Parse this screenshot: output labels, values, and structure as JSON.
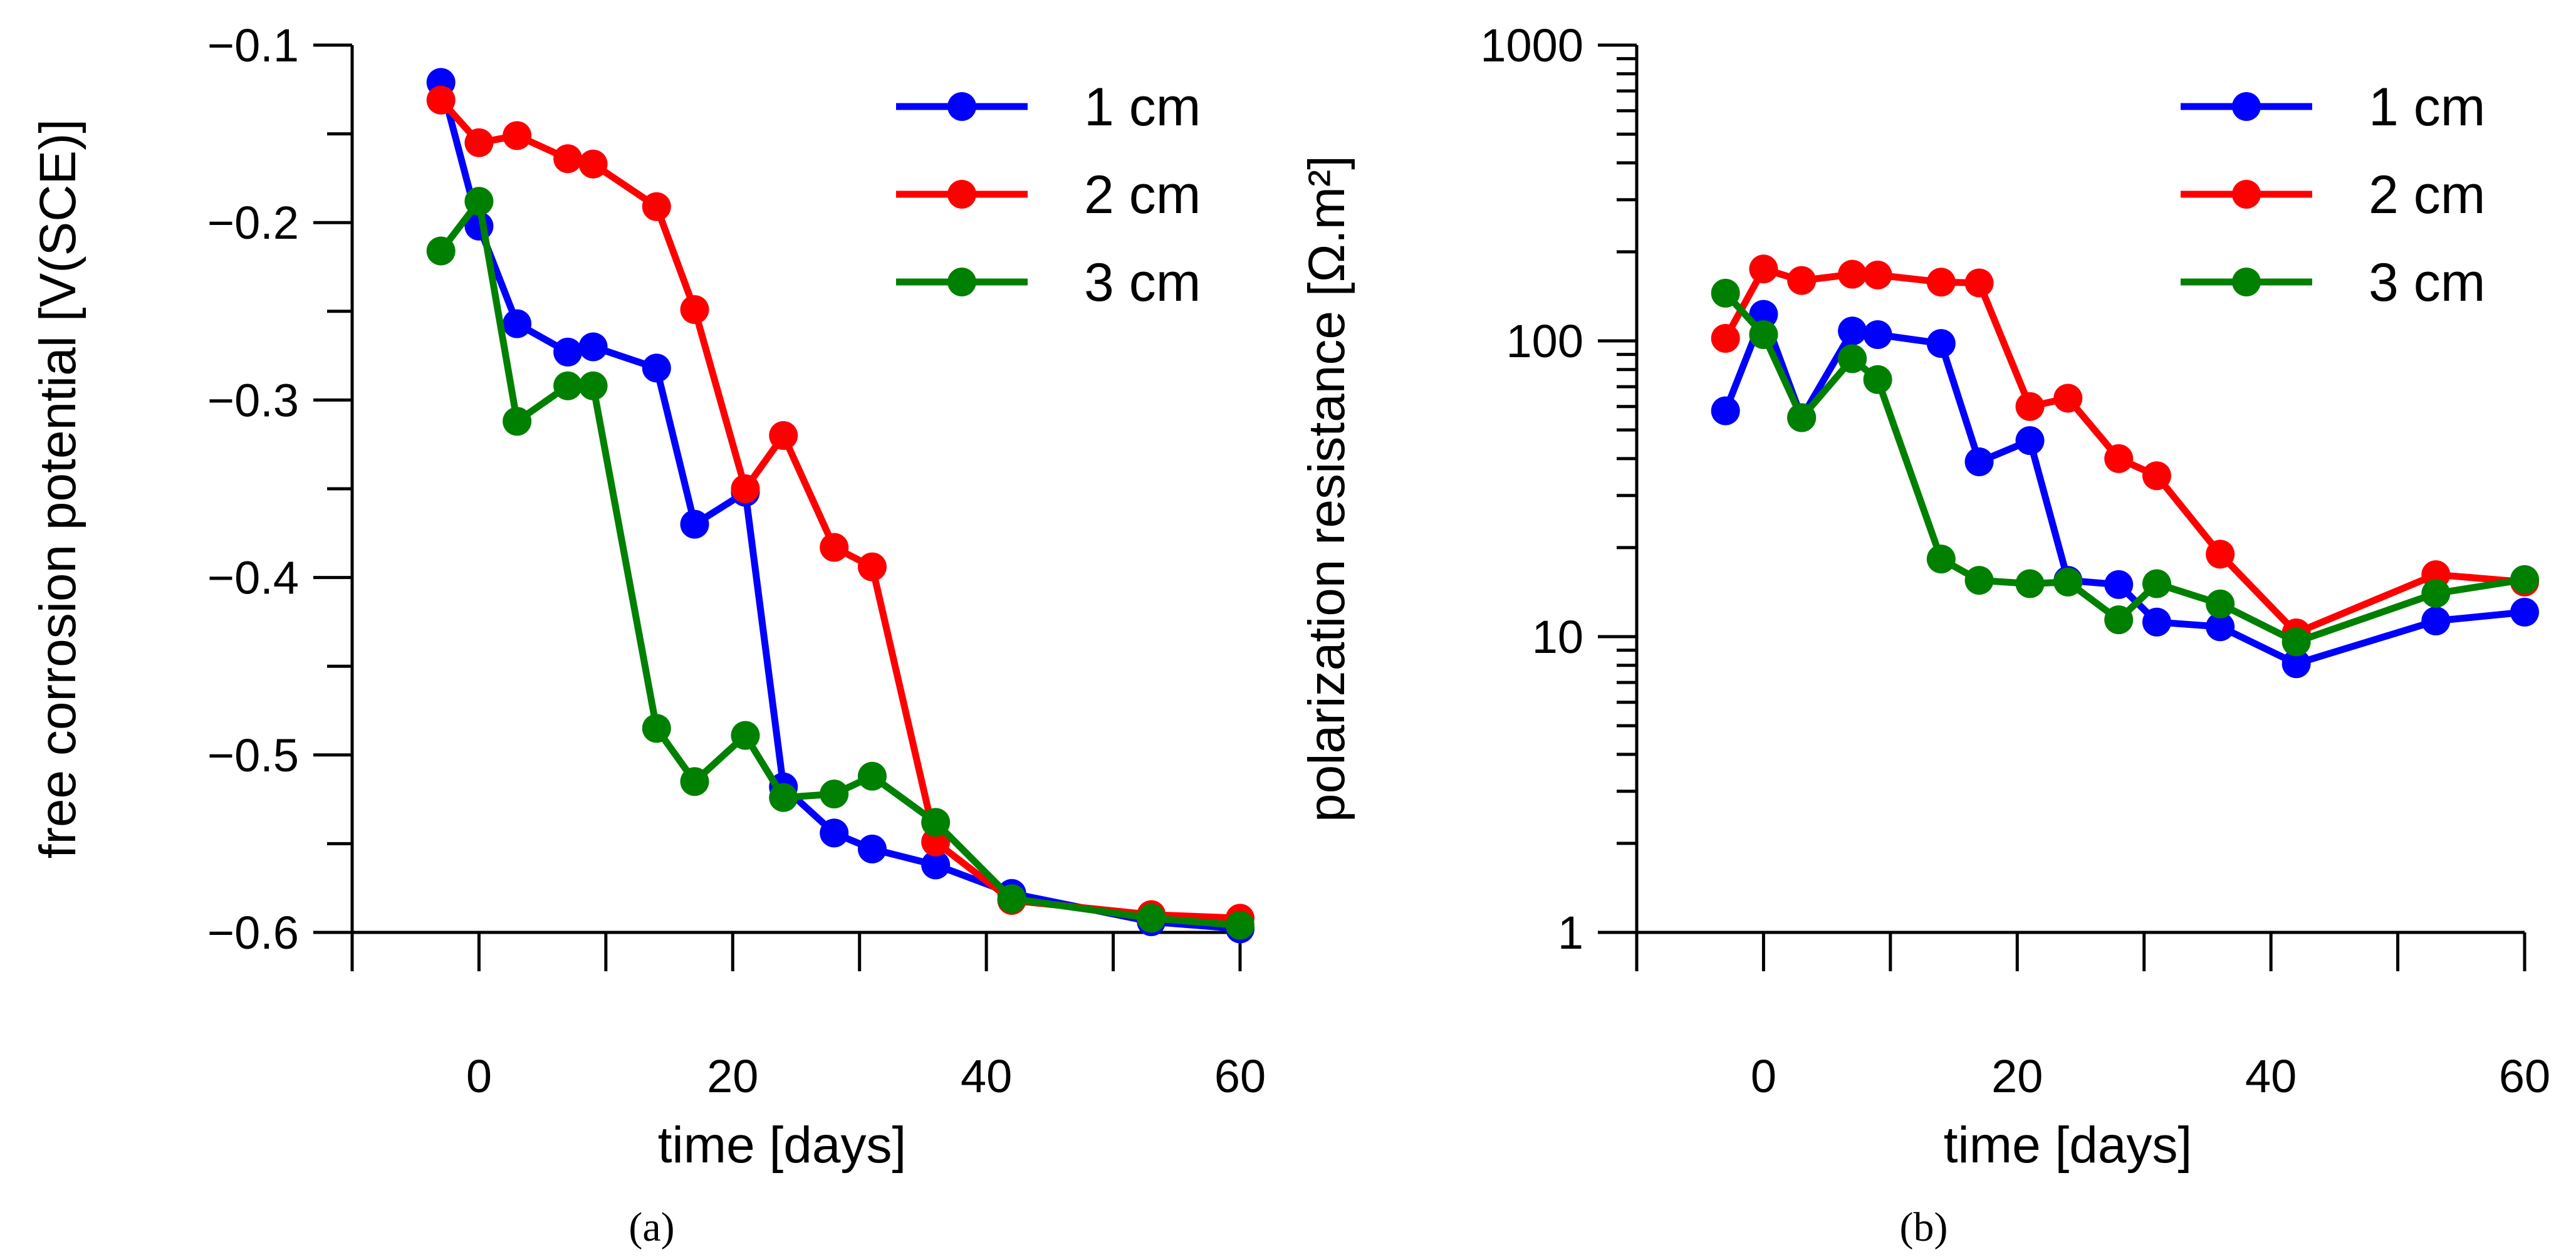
{
  "chart_data": [
    {
      "type": "line",
      "panel_label": "(a)",
      "xlabel": "time [days]",
      "ylabel": "free corrosion potential [V(SCE)]",
      "xlim": [
        -10,
        60
      ],
      "ylim": [
        -0.6,
        -0.1
      ],
      "xticks": [
        0,
        20,
        40,
        60
      ],
      "xtick_labels": [
        "0",
        "20",
        "40",
        "60"
      ],
      "yticks": [
        -0.6,
        -0.5,
        -0.4,
        -0.3,
        -0.2,
        -0.1
      ],
      "ytick_labels": [
        "−0.6",
        "−0.5",
        "−0.4",
        "−0.3",
        "−0.2",
        "−0.1"
      ],
      "legend_position": "top-right",
      "series": [
        {
          "name": "1 cm",
          "color": "#0000ff",
          "x": [
            -3,
            0,
            3,
            7,
            9,
            14,
            17,
            21,
            24,
            28,
            31,
            36,
            42,
            53,
            60
          ],
          "values": [
            -0.121,
            -0.202,
            -0.257,
            -0.273,
            -0.27,
            -0.282,
            -0.37,
            -0.352,
            -0.518,
            -0.544,
            -0.553,
            -0.562,
            -0.578,
            -0.594,
            -0.598
          ]
        },
        {
          "name": "2 cm",
          "color": "#ff0000",
          "x": [
            -3,
            0,
            3,
            7,
            9,
            14,
            17,
            21,
            24,
            28,
            31,
            36,
            42,
            53,
            60
          ],
          "values": [
            -0.131,
            -0.155,
            -0.151,
            -0.164,
            -0.167,
            -0.191,
            -0.249,
            -0.35,
            -0.32,
            -0.383,
            -0.394,
            -0.549,
            -0.582,
            -0.59,
            -0.592
          ]
        },
        {
          "name": "3 cm",
          "color": "#008000",
          "x": [
            -3,
            0,
            3,
            7,
            9,
            14,
            17,
            21,
            24,
            28,
            31,
            36,
            42,
            53,
            60
          ],
          "values": [
            -0.216,
            -0.188,
            -0.312,
            -0.292,
            -0.292,
            -0.485,
            -0.515,
            -0.489,
            -0.524,
            -0.522,
            -0.512,
            -0.538,
            -0.581,
            -0.592,
            -0.596
          ]
        }
      ]
    },
    {
      "type": "line",
      "panel_label": "(b)",
      "xlabel": "time [days]",
      "ylabel": "polarization resistance [Ω.m²]",
      "yscale": "log",
      "xlim": [
        -10,
        60
      ],
      "ylim": [
        1,
        1000
      ],
      "xticks": [
        0,
        20,
        40,
        60
      ],
      "xtick_labels": [
        "0",
        "20",
        "40",
        "60"
      ],
      "yticks": [
        1,
        10,
        100,
        1000
      ],
      "ytick_labels": [
        "1",
        "10",
        "100",
        "1000"
      ],
      "legend_position": "top-right",
      "series": [
        {
          "name": "1 cm",
          "color": "#0000ff",
          "x": [
            -3,
            0,
            3,
            7,
            9,
            14,
            17,
            21,
            24,
            28,
            31,
            36,
            42,
            53,
            60
          ],
          "values": [
            58,
            123,
            55,
            108,
            105,
            98,
            39,
            46,
            15.5,
            15,
            11.2,
            10.8,
            8.1,
            11.3,
            12.1
          ]
        },
        {
          "name": "2 cm",
          "color": "#ff0000",
          "x": [
            -3,
            0,
            3,
            7,
            9,
            14,
            17,
            21,
            24,
            28,
            31,
            36,
            42,
            53,
            60
          ],
          "values": [
            102,
            175,
            160,
            168,
            167,
            158,
            157,
            60,
            64,
            40,
            35,
            19,
            10.3,
            16.2,
            15.3
          ]
        },
        {
          "name": "3 cm",
          "color": "#008000",
          "x": [
            -3,
            0,
            3,
            7,
            9,
            14,
            17,
            21,
            24,
            28,
            31,
            36,
            42,
            53,
            60
          ],
          "values": [
            145,
            105,
            55,
            87,
            74,
            18.3,
            15.5,
            15.1,
            15.3,
            11.4,
            15.1,
            12.9,
            9.6,
            14,
            15.6
          ]
        }
      ]
    }
  ]
}
